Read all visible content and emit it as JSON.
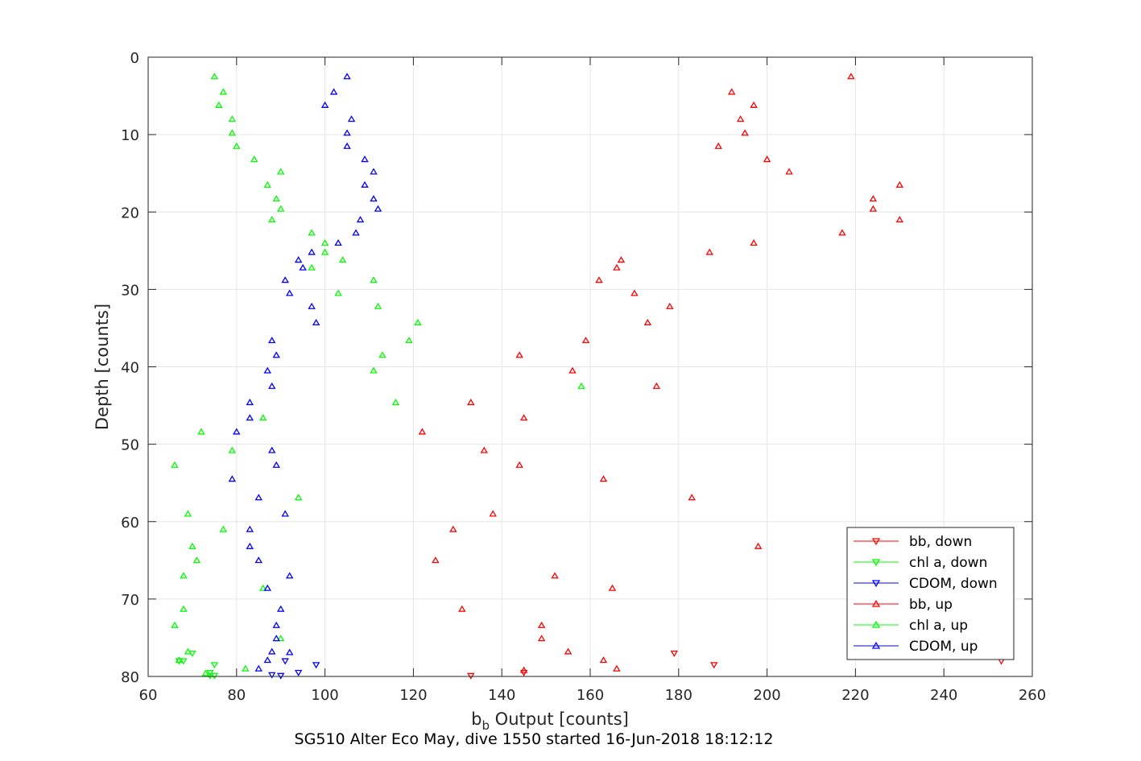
{
  "chart_data": {
    "type": "scatter",
    "xlabel_base": "b",
    "xlabel_sub": "b",
    "xlabel_rest": " Output [counts]",
    "ylabel": "Depth [counts]",
    "caption": "SG510 Alter Eco May, dive 1550 started 16-Jun-2018 18:12:12",
    "xlim": [
      60,
      260
    ],
    "ylim": [
      0,
      80
    ],
    "y_reversed": true,
    "grid": true,
    "xticks": [
      60,
      80,
      100,
      120,
      140,
      160,
      180,
      200,
      220,
      240,
      260
    ],
    "yticks": [
      0,
      10,
      20,
      30,
      40,
      50,
      60,
      70,
      80
    ],
    "legend_position": "bottom-right",
    "series": [
      {
        "name": "bb, down",
        "color": "#ff0000",
        "marker": "triangle-down",
        "points": [
          [
            133,
            80
          ],
          [
            145,
            79.5
          ],
          [
            179,
            77
          ],
          [
            188,
            78.5
          ],
          [
            253,
            78
          ]
        ]
      },
      {
        "name": "chl a, down",
        "color": "#00ff00",
        "marker": "triangle-down",
        "points": [
          [
            74,
            80
          ],
          [
            75,
            78.5
          ],
          [
            70,
            77
          ],
          [
            67,
            78
          ],
          [
            74,
            79.5
          ],
          [
            75,
            80
          ],
          [
            68,
            78
          ]
        ]
      },
      {
        "name": "CDOM, down",
        "color": "#0000ff",
        "marker": "triangle-down",
        "points": [
          [
            90,
            80
          ],
          [
            91,
            78
          ],
          [
            94,
            79.5
          ],
          [
            98,
            78.5
          ],
          [
            88,
            79.8
          ]
        ]
      },
      {
        "name": "bb, up",
        "color": "#ff0000",
        "marker": "triangle-up",
        "points": [
          [
            219,
            2.5
          ],
          [
            192,
            4.5
          ],
          [
            197,
            6.2
          ],
          [
            194,
            8
          ],
          [
            195,
            9.8
          ],
          [
            189,
            11.5
          ],
          [
            200,
            13.2
          ],
          [
            205,
            14.8
          ],
          [
            230,
            16.5
          ],
          [
            224,
            18.3
          ],
          [
            224,
            19.6
          ],
          [
            230,
            21
          ],
          [
            217,
            22.7
          ],
          [
            197,
            24
          ],
          [
            187,
            25.2
          ],
          [
            167,
            26.2
          ],
          [
            166,
            27.2
          ],
          [
            162,
            28.8
          ],
          [
            170,
            30.5
          ],
          [
            178,
            32.2
          ],
          [
            173,
            34.3
          ],
          [
            159,
            36.6
          ],
          [
            144,
            38.5
          ],
          [
            156,
            40.5
          ],
          [
            175,
            42.5
          ],
          [
            133,
            44.6
          ],
          [
            145,
            46.6
          ],
          [
            122,
            48.4
          ],
          [
            136,
            50.8
          ],
          [
            144,
            52.7
          ],
          [
            163,
            54.5
          ],
          [
            183,
            56.9
          ],
          [
            138,
            59
          ],
          [
            129,
            61
          ],
          [
            198,
            63.2
          ],
          [
            125,
            65
          ],
          [
            152,
            67
          ],
          [
            165,
            68.6
          ],
          [
            131,
            71.3
          ],
          [
            149,
            73.4
          ],
          [
            149,
            75.1
          ],
          [
            155,
            76.8
          ],
          [
            163,
            77.9
          ],
          [
            166,
            79
          ],
          [
            145,
            79.2
          ]
        ]
      },
      {
        "name": "chl a, up",
        "color": "#00ff00",
        "marker": "triangle-up",
        "points": [
          [
            75,
            2.5
          ],
          [
            77,
            4.5
          ],
          [
            76,
            6.2
          ],
          [
            79,
            8
          ],
          [
            79,
            9.8
          ],
          [
            80,
            11.5
          ],
          [
            84,
            13.2
          ],
          [
            90,
            14.8
          ],
          [
            87,
            16.5
          ],
          [
            89,
            18.3
          ],
          [
            90,
            19.6
          ],
          [
            88,
            21
          ],
          [
            97,
            22.7
          ],
          [
            100,
            24
          ],
          [
            100,
            25.2
          ],
          [
            104,
            26.2
          ],
          [
            97,
            27.2
          ],
          [
            111,
            28.8
          ],
          [
            103,
            30.5
          ],
          [
            112,
            32.2
          ],
          [
            121,
            34.3
          ],
          [
            119,
            36.6
          ],
          [
            113,
            38.5
          ],
          [
            111,
            40.5
          ],
          [
            158,
            42.5
          ],
          [
            116,
            44.6
          ],
          [
            86,
            46.6
          ],
          [
            72,
            48.4
          ],
          [
            79,
            50.8
          ],
          [
            66,
            52.7
          ],
          [
            94,
            56.9
          ],
          [
            69,
            59
          ],
          [
            77,
            61
          ],
          [
            70,
            63.2
          ],
          [
            71,
            65
          ],
          [
            68,
            67
          ],
          [
            86,
            68.6
          ],
          [
            68,
            71.3
          ],
          [
            66,
            73.4
          ],
          [
            90,
            75.1
          ],
          [
            69,
            76.8
          ],
          [
            67,
            77.9
          ],
          [
            82,
            79
          ],
          [
            73,
            79.6
          ]
        ]
      },
      {
        "name": "CDOM, up",
        "color": "#0000ff",
        "marker": "triangle-up",
        "points": [
          [
            105,
            2.5
          ],
          [
            102,
            4.5
          ],
          [
            100,
            6.2
          ],
          [
            106,
            8
          ],
          [
            105,
            9.8
          ],
          [
            105,
            11.5
          ],
          [
            109,
            13.2
          ],
          [
            111,
            14.8
          ],
          [
            109,
            16.5
          ],
          [
            111,
            18.3
          ],
          [
            112,
            19.6
          ],
          [
            108,
            21
          ],
          [
            107,
            22.7
          ],
          [
            103,
            24
          ],
          [
            97,
            25.2
          ],
          [
            94,
            26.2
          ],
          [
            95,
            27.2
          ],
          [
            91,
            28.8
          ],
          [
            92,
            30.5
          ],
          [
            97,
            32.2
          ],
          [
            98,
            34.3
          ],
          [
            88,
            36.6
          ],
          [
            89,
            38.5
          ],
          [
            87,
            40.5
          ],
          [
            88,
            42.5
          ],
          [
            83,
            44.6
          ],
          [
            83,
            46.6
          ],
          [
            80,
            48.4
          ],
          [
            88,
            50.8
          ],
          [
            89,
            52.7
          ],
          [
            79,
            54.5
          ],
          [
            85,
            56.9
          ],
          [
            91,
            59
          ],
          [
            83,
            61
          ],
          [
            83,
            63.2
          ],
          [
            85,
            65
          ],
          [
            92,
            67
          ],
          [
            87,
            68.6
          ],
          [
            90,
            71.3
          ],
          [
            89,
            73.4
          ],
          [
            89,
            75.1
          ],
          [
            88,
            76.8
          ],
          [
            87,
            77.9
          ],
          [
            85,
            79
          ],
          [
            92,
            76.9
          ]
        ]
      }
    ]
  }
}
